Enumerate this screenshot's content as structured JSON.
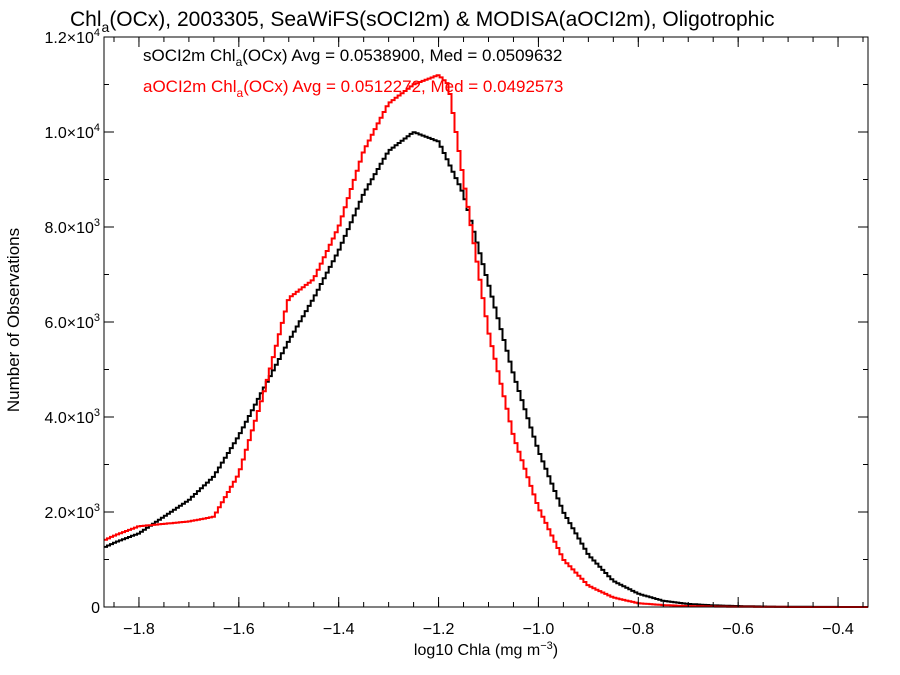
{
  "title": {
    "prefix": "Chl",
    "sub": "a",
    "suffix": "(OCx), 2003305, SeaWiFS(sOCI2m) & MODISA(aOCI2m), Oligotrophic"
  },
  "legend": [
    {
      "pre": "sOCI2m Chl",
      "sub": "a",
      "post": "(OCx) Avg = 0.0538900, Med = 0.0509632",
      "color": "#000000"
    },
    {
      "pre": "aOCI2m Chl",
      "sub": "a",
      "post": "(OCx) Avg = 0.0512272, Med = 0.0492573",
      "color": "#ff0000"
    }
  ],
  "axes": {
    "xlabel": {
      "text": "log10 Chla (mg m",
      "sup": "−3",
      "end": ")"
    },
    "ylabel": "Number of Observations",
    "xticks": [
      {
        "v": -1.8,
        "label": "−1.8"
      },
      {
        "v": -1.6,
        "label": "−1.6"
      },
      {
        "v": -1.4,
        "label": "−1.4"
      },
      {
        "v": -1.2,
        "label": "−1.2"
      },
      {
        "v": -1.0,
        "label": "−1.0"
      },
      {
        "v": -0.8,
        "label": "−0.8"
      },
      {
        "v": -0.6,
        "label": "−0.6"
      },
      {
        "v": -0.4,
        "label": "−0.4"
      }
    ],
    "yticks": [
      {
        "v": 0,
        "mant": "0",
        "exp": ""
      },
      {
        "v": 2000,
        "mant": "2.0×10",
        "exp": "3"
      },
      {
        "v": 4000,
        "mant": "4.0×10",
        "exp": "3"
      },
      {
        "v": 6000,
        "mant": "6.0×10",
        "exp": "3"
      },
      {
        "v": 8000,
        "mant": "8.0×10",
        "exp": "3"
      },
      {
        "v": 10000,
        "mant": "1.0×10",
        "exp": "4"
      },
      {
        "v": 12000,
        "mant": "1.2×10",
        "exp": "4"
      }
    ]
  },
  "chart_data": {
    "type": "line",
    "xlim": [
      -1.87,
      -0.34
    ],
    "ylim": [
      0,
      12000
    ],
    "x_minor_step": 0.05,
    "y_minor_step": 1000,
    "series": [
      {
        "name": "sOCI2m",
        "color": "#000000",
        "x": [
          -1.87,
          -1.85,
          -1.8,
          -1.75,
          -1.7,
          -1.65,
          -1.6,
          -1.55,
          -1.5,
          -1.45,
          -1.4,
          -1.35,
          -1.3,
          -1.25,
          -1.2,
          -1.15,
          -1.1,
          -1.05,
          -1.0,
          -0.95,
          -0.9,
          -0.85,
          -0.8,
          -0.75,
          -0.7,
          -0.65,
          -0.6,
          -0.55,
          -0.5,
          -0.45,
          -0.4,
          -0.34
        ],
        "y": [
          1250,
          1350,
          1550,
          1900,
          2250,
          2750,
          3600,
          4600,
          5600,
          6500,
          7500,
          8700,
          9600,
          10000,
          9800,
          8700,
          6800,
          4900,
          3300,
          2000,
          1100,
          550,
          280,
          130,
          65,
          35,
          20,
          10,
          5,
          3,
          1,
          0
        ]
      },
      {
        "name": "aOCI2m",
        "color": "#ff0000",
        "x": [
          -1.87,
          -1.85,
          -1.8,
          -1.75,
          -1.7,
          -1.65,
          -1.6,
          -1.55,
          -1.5,
          -1.45,
          -1.4,
          -1.35,
          -1.3,
          -1.25,
          -1.2,
          -1.18,
          -1.15,
          -1.1,
          -1.05,
          -1.0,
          -0.95,
          -0.9,
          -0.85,
          -0.8,
          -0.75,
          -0.7,
          -0.65,
          -0.6,
          -0.55,
          -0.5,
          -0.45,
          -0.4,
          -0.34
        ],
        "y": [
          1400,
          1500,
          1700,
          1750,
          1800,
          1900,
          2800,
          4500,
          6500,
          6900,
          8000,
          9600,
          10600,
          11000,
          11200,
          11000,
          9000,
          5800,
          3600,
          2100,
          1000,
          450,
          200,
          80,
          40,
          20,
          10,
          5,
          2,
          1,
          0,
          0,
          0
        ]
      }
    ]
  }
}
